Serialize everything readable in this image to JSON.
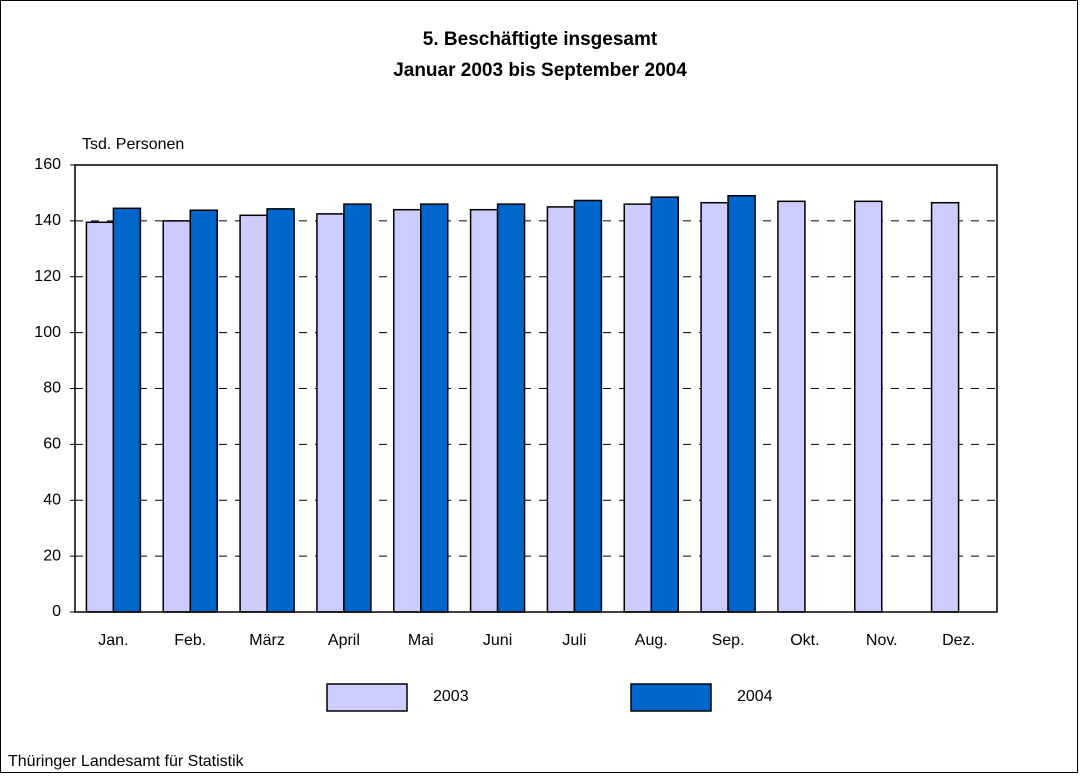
{
  "chart_data": {
    "type": "bar",
    "title": "5. Beschäftigte insgesamt",
    "subtitle": "Januar 2003 bis September 2004",
    "y_label": "Tsd. Personen",
    "source": "Thüringer Landesamt für Statistik",
    "categories": [
      "Jan.",
      "Feb.",
      "März",
      "April",
      "Mai",
      "Juni",
      "Juli",
      "Aug.",
      "Sep.",
      "Okt.",
      "Nov.",
      "Dez."
    ],
    "series": [
      {
        "name": "2003",
        "color": "#ccccff",
        "values": [
          139.5,
          140,
          142,
          142.5,
          144,
          144,
          145,
          146,
          146.5,
          147,
          147,
          146.5
        ]
      },
      {
        "name": "2004",
        "color": "#0066cc",
        "values": [
          144.5,
          143.8,
          144.3,
          146,
          146,
          146,
          147.3,
          148.5,
          149,
          null,
          null,
          null
        ]
      }
    ],
    "ylim": [
      0,
      160
    ],
    "yticks": [
      0,
      20,
      40,
      60,
      80,
      100,
      120,
      140,
      160
    ],
    "grid": true,
    "legend": "bottom"
  }
}
